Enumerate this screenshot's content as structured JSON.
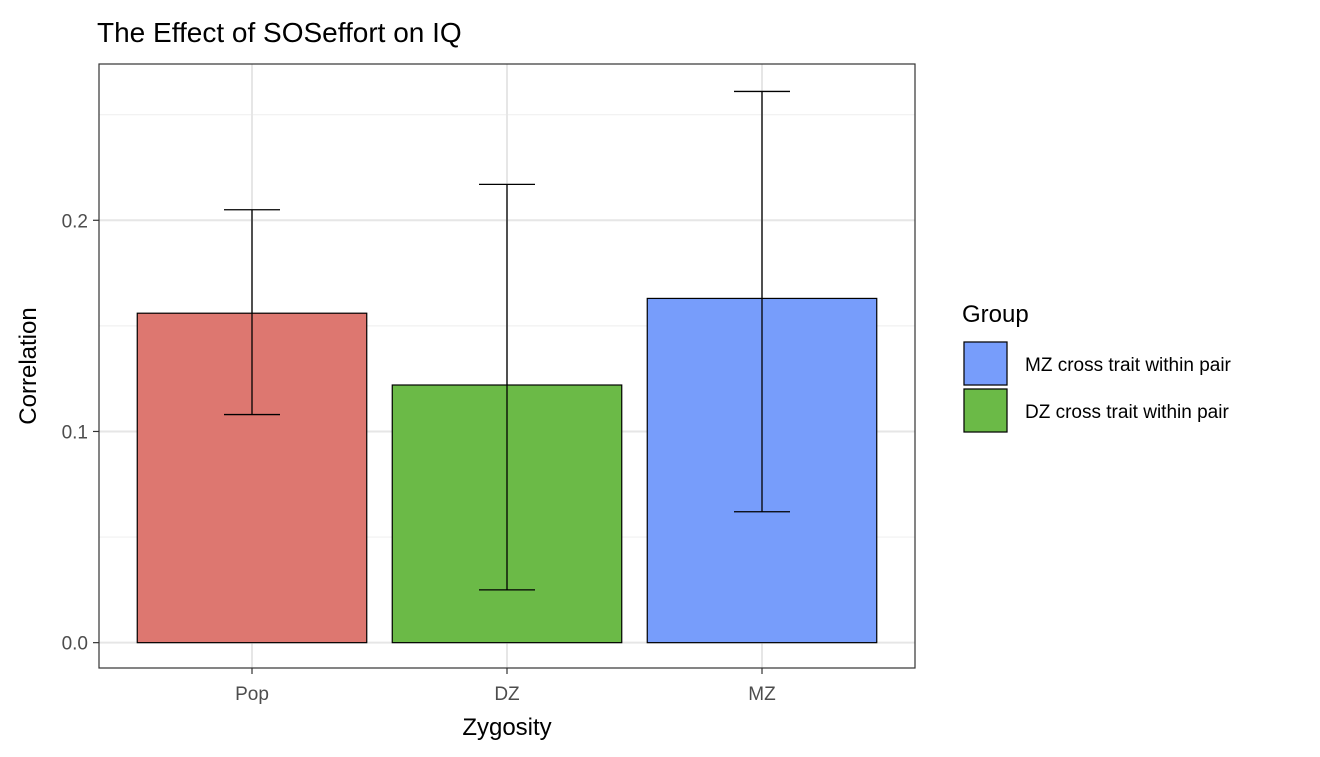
{
  "chart_data": {
    "type": "bar",
    "title": "The Effect of SOSeffort on IQ",
    "xlabel": "Zygosity",
    "ylabel": "Correlation",
    "categories": [
      "Pop",
      "DZ",
      "MZ"
    ],
    "values": [
      0.156,
      0.122,
      0.163
    ],
    "error_low": [
      0.108,
      0.025,
      0.062
    ],
    "error_high": [
      0.205,
      0.217,
      0.261
    ],
    "bar_colors": [
      "#DD7770",
      "#6BBA47",
      "#779DFB"
    ],
    "ylim": [
      -0.012,
      0.274
    ],
    "yticks": [
      0.0,
      0.1,
      0.2
    ],
    "ytick_labels": [
      "0.0",
      "0.1",
      "0.2"
    ],
    "grid": true,
    "legend": {
      "title": "Group",
      "placement": "right",
      "entries": [
        {
          "label": "MZ cross trait within pair",
          "color": "#779DFB"
        },
        {
          "label": "DZ cross trait within pair",
          "color": "#6BBA47"
        }
      ]
    }
  }
}
